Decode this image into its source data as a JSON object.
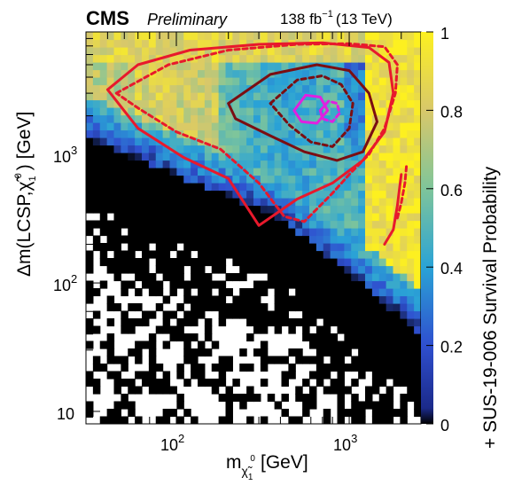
{
  "header": {
    "experiment": "CMS",
    "status": "Preliminary",
    "lumi": "138 fb",
    "lumi_exp": "−1",
    "energy": "(13 TeV)"
  },
  "axes": {
    "x_label_main": "m",
    "x_label_sub": "χ̃",
    "x_label_sub2": "1",
    "x_label_sup": "0",
    "x_label_unit": "[GeV]",
    "y_label_main": "Δm(LCSP,",
    "y_label_chi": "χ̃",
    "y_label_sub": "1",
    "y_label_sup": "0",
    "y_label_tail": ") [GeV]",
    "z_label": "+ SUS-19-006 Survival Probability"
  },
  "colors": {
    "observed": "#e8192c",
    "expected": "#7b0e12",
    "best": "#e020e0"
  },
  "chart_data": {
    "type": "heatmap",
    "title": "",
    "xlabel": "m(χ̃1⁰) [GeV]",
    "ylabel": "Δm(LCSP, χ̃1⁰) [GeV]",
    "zlabel": "+ SUS-19-006 Survival Probability",
    "x_scale": "log",
    "y_scale": "log",
    "xlim": [
      30,
      2600
    ],
    "ylim": [
      8,
      9000
    ],
    "zlim": [
      0,
      1
    ],
    "x_ticks": [
      {
        "value": 100,
        "base": "10",
        "exp": "2"
      },
      {
        "value": 1000,
        "base": "10",
        "exp": "3"
      }
    ],
    "y_ticks": [
      {
        "value": 10,
        "label": "10"
      },
      {
        "value": 100,
        "base": "10",
        "exp": "2"
      },
      {
        "value": 1000,
        "base": "10",
        "exp": "3"
      }
    ],
    "z_ticks": [
      0,
      0.2,
      0.4,
      0.6,
      0.8,
      1
    ],
    "colormap": [
      "#000000",
      "#2f4fcf",
      "#2aa3d6",
      "#7fc59a",
      "#d8c86a",
      "#fdf020"
    ],
    "contours": [
      {
        "style": "solid",
        "color": "#e8192c",
        "points": [
          [
            40,
            3200
          ],
          [
            60,
            5000
          ],
          [
            120,
            6500
          ],
          [
            300,
            7200
          ],
          [
            700,
            7400
          ],
          [
            1300,
            6800
          ],
          [
            1700,
            5200
          ],
          [
            1800,
            3000
          ],
          [
            1600,
            1500
          ],
          [
            1200,
            900
          ],
          [
            800,
            600
          ],
          [
            500,
            450
          ],
          [
            300,
            280
          ],
          [
            200,
            650
          ],
          [
            110,
            950
          ],
          [
            60,
            1600
          ],
          [
            40,
            3200
          ]
        ]
      },
      {
        "style": "solid",
        "color": "#e8192c",
        "points": [
          [
            1600,
            200
          ],
          [
            1800,
            260
          ],
          [
            1900,
            400
          ],
          [
            2000,
            700
          ]
        ]
      },
      {
        "style": "dashed",
        "color": "#e8192c",
        "points": [
          [
            45,
            3000
          ],
          [
            90,
            5000
          ],
          [
            200,
            6500
          ],
          [
            500,
            7200
          ],
          [
            1000,
            7300
          ],
          [
            1600,
            6900
          ],
          [
            1900,
            5000
          ],
          [
            1850,
            3000
          ],
          [
            1600,
            1600
          ],
          [
            1300,
            1000
          ],
          [
            1000,
            700
          ],
          [
            800,
            500
          ],
          [
            550,
            300
          ],
          [
            420,
            330
          ],
          [
            300,
            600
          ],
          [
            180,
            1100
          ],
          [
            100,
            1500
          ],
          [
            60,
            2300
          ],
          [
            45,
            3000
          ]
        ]
      },
      {
        "style": "dashed",
        "color": "#e8192c",
        "points": [
          [
            1900,
            320
          ],
          [
            2000,
            420
          ],
          [
            2100,
            600
          ],
          [
            2150,
            850
          ]
        ]
      },
      {
        "style": "solid",
        "color": "#7b0e12",
        "points": [
          [
            200,
            2500
          ],
          [
            350,
            4200
          ],
          [
            650,
            5000
          ],
          [
            1000,
            4500
          ],
          [
            1300,
            3000
          ],
          [
            1450,
            1800
          ],
          [
            1200,
            1050
          ],
          [
            850,
            900
          ],
          [
            550,
            1050
          ],
          [
            350,
            1400
          ],
          [
            220,
            1900
          ],
          [
            200,
            2500
          ]
        ]
      },
      {
        "style": "dashed",
        "color": "#7b0e12",
        "points": [
          [
            350,
            2500
          ],
          [
            500,
            3800
          ],
          [
            700,
            4100
          ],
          [
            900,
            3500
          ],
          [
            1050,
            2500
          ],
          [
            1000,
            1600
          ],
          [
            800,
            1150
          ],
          [
            600,
            1250
          ],
          [
            450,
            1700
          ],
          [
            350,
            2500
          ]
        ]
      },
      {
        "style": "solid",
        "color": "#e020e0",
        "points": [
          [
            480,
            2200
          ],
          [
            560,
            2900
          ],
          [
            680,
            2800
          ],
          [
            750,
            2200
          ],
          [
            650,
            1750
          ],
          [
            530,
            1800
          ],
          [
            480,
            2200
          ]
        ]
      },
      {
        "style": "dashed",
        "color": "#e020e0",
        "points": [
          [
            680,
            2200
          ],
          [
            760,
            2600
          ],
          [
            850,
            2500
          ],
          [
            880,
            2100
          ],
          [
            800,
            1800
          ],
          [
            700,
            1900
          ],
          [
            680,
            2200
          ]
        ]
      }
    ]
  }
}
